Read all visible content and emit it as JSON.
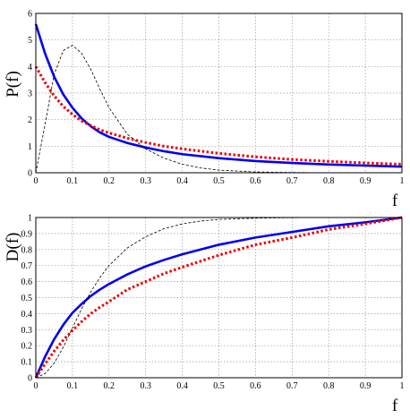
{
  "chart_data": [
    {
      "type": "line",
      "xlabel": "f",
      "ylabel": "P(f)",
      "xlim": [
        0,
        1
      ],
      "ylim": [
        0,
        6
      ],
      "xticks": [
        "0",
        "0.1",
        "0.2",
        "0.3",
        "0.4",
        "0.5",
        "0.6",
        "0.7",
        "0.8",
        "0.9",
        "1"
      ],
      "yticks": [
        "0",
        "1",
        "2",
        "3",
        "4",
        "5",
        "6"
      ],
      "grid": true,
      "series": [
        {
          "style": "solid",
          "color": "#0000ee",
          "x": [
            0,
            0.025,
            0.05,
            0.075,
            0.1,
            0.125,
            0.15,
            0.175,
            0.2,
            0.25,
            0.3,
            0.35,
            0.4,
            0.5,
            0.6,
            0.7,
            0.8,
            0.9,
            1.0
          ],
          "y": [
            5.6,
            4.5,
            3.62,
            2.95,
            2.45,
            2.05,
            1.75,
            1.52,
            1.35,
            1.12,
            0.95,
            0.81,
            0.7,
            0.55,
            0.44,
            0.37,
            0.31,
            0.27,
            0.23
          ]
        },
        {
          "style": "dotted",
          "color": "#ee0000",
          "x": [
            0,
            0.025,
            0.05,
            0.075,
            0.1,
            0.125,
            0.15,
            0.175,
            0.2,
            0.25,
            0.3,
            0.35,
            0.4,
            0.5,
            0.6,
            0.7,
            0.8,
            0.9,
            1.0
          ],
          "y": [
            4.0,
            3.4,
            2.9,
            2.5,
            2.2,
            1.95,
            1.78,
            1.62,
            1.5,
            1.3,
            1.14,
            1.0,
            0.9,
            0.73,
            0.6,
            0.5,
            0.43,
            0.37,
            0.32
          ]
        },
        {
          "style": "thin-dashed",
          "color": "#000000",
          "x": [
            0,
            0.025,
            0.05,
            0.075,
            0.1,
            0.125,
            0.15,
            0.175,
            0.2,
            0.25,
            0.3,
            0.35,
            0.4,
            0.45,
            0.5,
            0.6,
            0.7,
            0.8,
            1.0
          ],
          "y": [
            0,
            1.8,
            3.7,
            4.6,
            4.8,
            4.5,
            3.9,
            3.15,
            2.45,
            1.45,
            0.9,
            0.55,
            0.32,
            0.18,
            0.1,
            0.03,
            0.01,
            0,
            0
          ]
        }
      ]
    },
    {
      "type": "line",
      "xlabel": "f",
      "ylabel": "D(f)",
      "xlim": [
        0,
        1
      ],
      "ylim": [
        0,
        1
      ],
      "xticks": [
        "0",
        "0.1",
        "0.2",
        "0.3",
        "0.4",
        "0.5",
        "0.6",
        "0.7",
        "0.8",
        "0.9",
        "1"
      ],
      "yticks": [
        "0",
        "0.1",
        "0.2",
        "0.3",
        "0.4",
        "0.5",
        "0.6",
        "0.7",
        "0.8",
        "0.9",
        "1"
      ],
      "grid": true,
      "series": [
        {
          "style": "solid",
          "color": "#0000ee",
          "x": [
            0,
            0.025,
            0.05,
            0.075,
            0.1,
            0.125,
            0.15,
            0.175,
            0.2,
            0.25,
            0.3,
            0.35,
            0.4,
            0.5,
            0.6,
            0.7,
            0.8,
            0.9,
            1.0
          ],
          "y": [
            0,
            0.13,
            0.24,
            0.33,
            0.405,
            0.46,
            0.51,
            0.55,
            0.585,
            0.645,
            0.695,
            0.735,
            0.77,
            0.83,
            0.875,
            0.91,
            0.945,
            0.97,
            1.0
          ]
        },
        {
          "style": "dotted",
          "color": "#ee0000",
          "x": [
            0,
            0.025,
            0.05,
            0.075,
            0.1,
            0.125,
            0.15,
            0.175,
            0.2,
            0.25,
            0.3,
            0.35,
            0.4,
            0.5,
            0.6,
            0.7,
            0.8,
            0.9,
            1.0
          ],
          "y": [
            0,
            0.085,
            0.165,
            0.235,
            0.295,
            0.35,
            0.4,
            0.44,
            0.475,
            0.55,
            0.6,
            0.65,
            0.69,
            0.765,
            0.83,
            0.875,
            0.925,
            0.96,
            1.0
          ]
        },
        {
          "style": "thin-dashed",
          "color": "#000000",
          "x": [
            0,
            0.025,
            0.05,
            0.075,
            0.1,
            0.125,
            0.15,
            0.175,
            0.2,
            0.25,
            0.3,
            0.35,
            0.4,
            0.45,
            0.5,
            0.6,
            0.7,
            0.8,
            1.0
          ],
          "y": [
            0,
            0.025,
            0.09,
            0.19,
            0.31,
            0.43,
            0.535,
            0.625,
            0.7,
            0.81,
            0.88,
            0.93,
            0.96,
            0.978,
            0.988,
            0.996,
            0.999,
            1.0,
            1.0
          ]
        }
      ]
    }
  ]
}
